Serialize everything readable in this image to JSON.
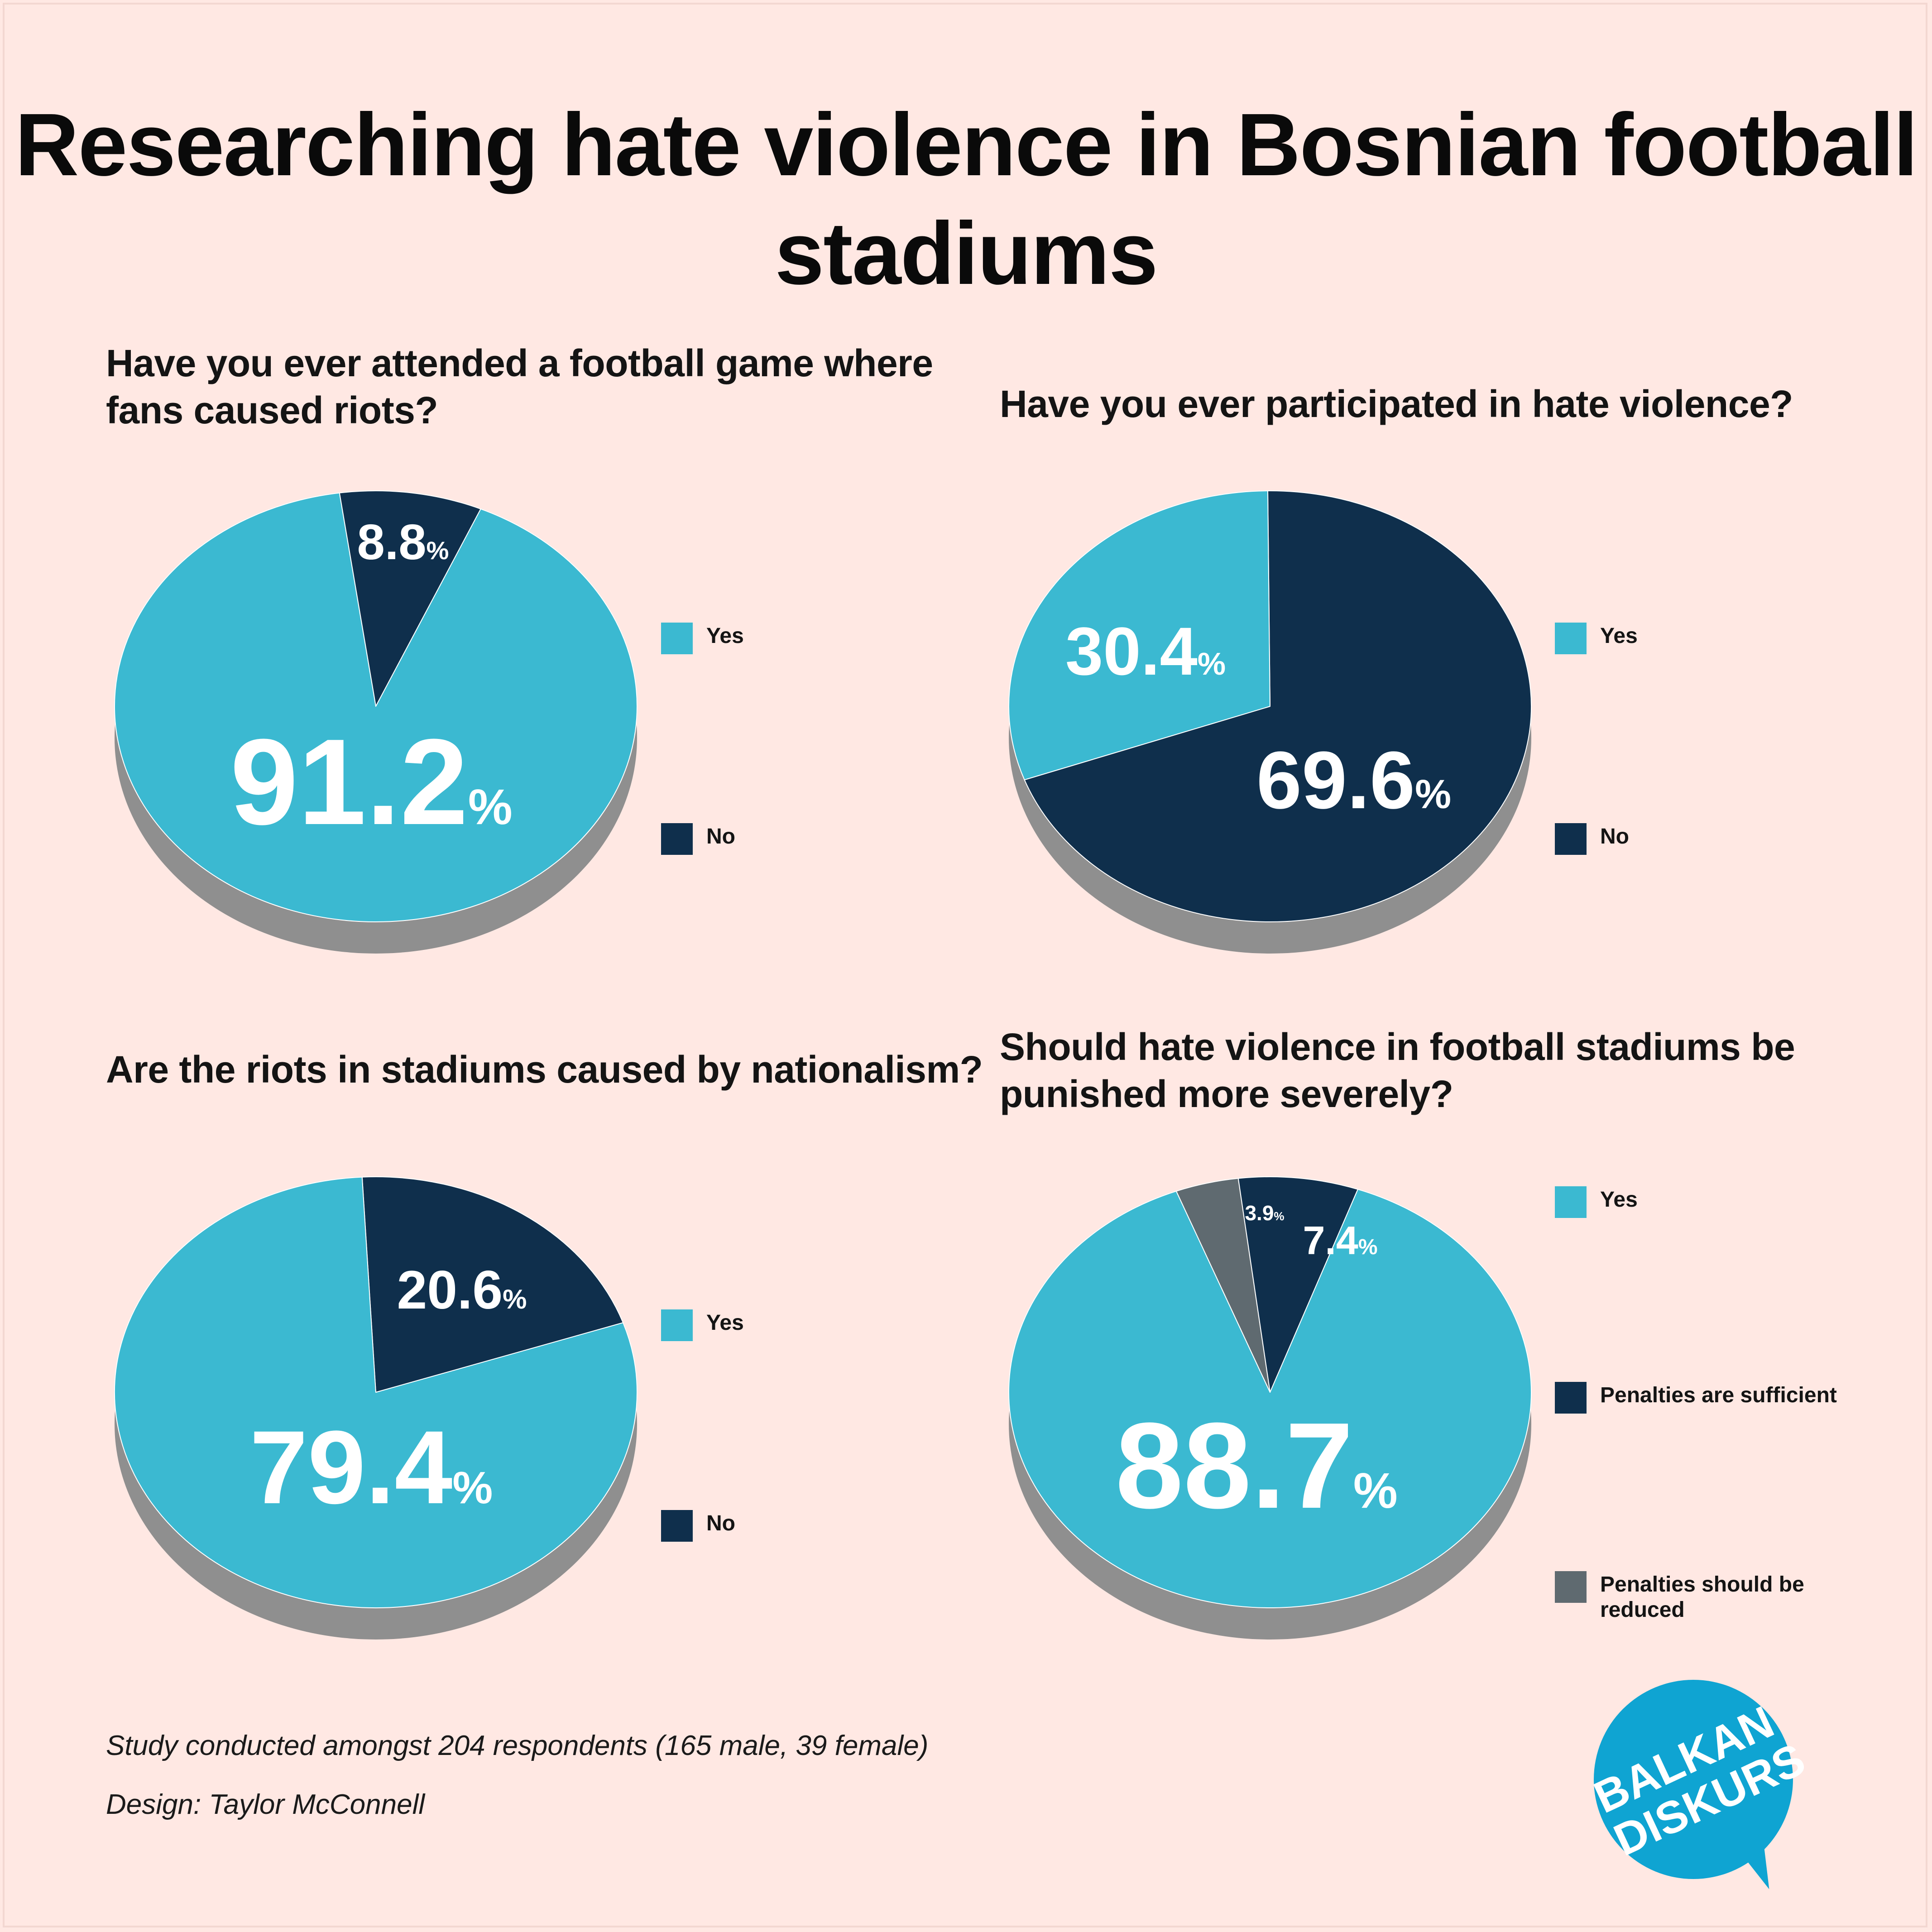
{
  "title": "Researching hate violence in Bosnian football stadiums",
  "colors": {
    "background": "#ffe8e3",
    "yes": "#3bb9d1",
    "no": "#0f2f4c",
    "reduced": "#5f6a70",
    "shadow": "#8f8f8f",
    "logo": "#0fa4d2"
  },
  "legend_icons": [
    "color-swatch-icon"
  ],
  "chart_data": [
    {
      "type": "pie",
      "title": "Have you ever attended a football game where fans caused riots?",
      "categories": [
        "Yes",
        "No"
      ],
      "values": [
        91.2,
        8.8
      ],
      "labels": [
        {
          "value": "91.2",
          "unit": "%"
        },
        {
          "value": "8.8",
          "unit": "%"
        }
      ],
      "legend_position": "right"
    },
    {
      "type": "pie",
      "title": "Have you ever participated in hate violence?",
      "categories": [
        "Yes",
        "No"
      ],
      "values": [
        30.4,
        69.6
      ],
      "labels": [
        {
          "value": "30.4",
          "unit": "%"
        },
        {
          "value": "69.6",
          "unit": "%"
        }
      ],
      "legend_position": "right"
    },
    {
      "type": "pie",
      "title": "Are the riots in stadiums caused by nationalism?",
      "categories": [
        "Yes",
        "No"
      ],
      "values": [
        79.4,
        20.6
      ],
      "labels": [
        {
          "value": "79.4",
          "unit": "%"
        },
        {
          "value": "20.6",
          "unit": "%"
        }
      ],
      "legend_position": "right"
    },
    {
      "type": "pie",
      "title": "Should hate violence in football stadiums be punished more severely?",
      "categories": [
        "Yes",
        "Penalties are sufficient",
        "Penalties should be reduced"
      ],
      "values": [
        88.7,
        7.4,
        3.9
      ],
      "labels": [
        {
          "value": "88.7",
          "unit": "%"
        },
        {
          "value": "7.4",
          "unit": "%"
        },
        {
          "value": "3.9",
          "unit": "%"
        }
      ],
      "legend_position": "right"
    }
  ],
  "footnotes": {
    "study": "Study conducted amongst 204 respondents (165 male, 39 female)",
    "design": "Design: Taylor McConnell"
  },
  "logo": {
    "line1": "BALKAN",
    "line2": "DISKURS"
  }
}
